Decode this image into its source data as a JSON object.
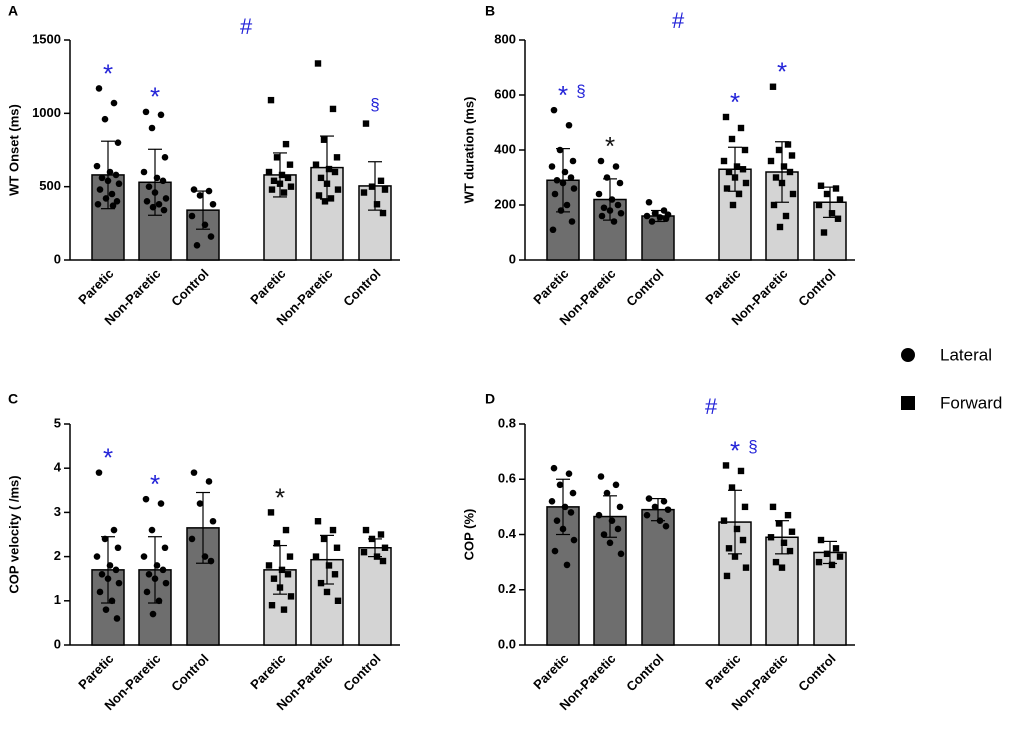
{
  "chart_data": [
    {
      "type": "bar",
      "label": "A",
      "ylabel": "WT Onset (ms)",
      "hash": "#",
      "hash_color": "#2323d8",
      "ylim": [
        0,
        1500
      ],
      "yticks": [
        0,
        500,
        1000,
        1500
      ],
      "categories": [
        "Paretic",
        "Non-Paretic",
        "Control"
      ],
      "series": [
        {
          "name": "Lateral",
          "marker": "circle",
          "color": "#6e6e6e",
          "values": [
            580,
            530,
            340
          ],
          "errors": [
            230,
            225,
            130
          ],
          "points": [
            [
              1170,
              1070,
              960,
              800,
              640,
              600,
              580,
              560,
              540,
              520,
              480,
              450,
              420,
              400,
              380,
              370
            ],
            [
              1010,
              990,
              900,
              700,
              600,
              560,
              540,
              500,
              460,
              420,
              400,
              380,
              360,
              340
            ],
            [
              480,
              470,
              440,
              380,
              300,
              240,
              160,
              100
            ]
          ]
        },
        {
          "name": "Forward",
          "marker": "square",
          "color": "#d4d4d4",
          "values": [
            580,
            630,
            505
          ],
          "errors": [
            150,
            215,
            165
          ],
          "points": [
            [
              1090,
              790,
              700,
              650,
              600,
              580,
              560,
              540,
              520,
              500,
              480,
              460
            ],
            [
              1340,
              1030,
              820,
              700,
              650,
              620,
              600,
              560,
              520,
              480,
              440,
              420,
              400
            ],
            [
              930,
              540,
              500,
              480,
              460,
              380,
              320
            ]
          ]
        }
      ],
      "annotations": [
        {
          "text": "*",
          "series": 0,
          "index": 0,
          "color": "#2323d8"
        },
        {
          "text": "*",
          "series": 0,
          "index": 1,
          "color": "#2323d8"
        },
        {
          "text": "§",
          "series": 1,
          "index": 2,
          "color": "#2323d8"
        }
      ]
    },
    {
      "type": "bar",
      "label": "B",
      "ylabel": "WT duration (ms)",
      "hash": "#",
      "hash_color": "#2323d8",
      "ylim": [
        0,
        800
      ],
      "yticks": [
        0,
        200,
        400,
        600,
        800
      ],
      "categories": [
        "Paretic",
        "Non-Paretic",
        "Control"
      ],
      "series": [
        {
          "name": "Lateral",
          "marker": "circle",
          "color": "#6e6e6e",
          "values": [
            290,
            220,
            160
          ],
          "errors": [
            115,
            75,
            20
          ],
          "points": [
            [
              545,
              490,
              400,
              360,
              340,
              320,
              300,
              290,
              280,
              260,
              240,
              200,
              180,
              140,
              110
            ],
            [
              360,
              340,
              300,
              280,
              240,
              220,
              200,
              190,
              180,
              170,
              160,
              140
            ],
            [
              210,
              180,
              170,
              165,
              160,
              155,
              150,
              140
            ]
          ]
        },
        {
          "name": "Forward",
          "marker": "square",
          "color": "#d4d4d4",
          "values": [
            330,
            320,
            210
          ],
          "errors": [
            80,
            110,
            55
          ],
          "points": [
            [
              520,
              480,
              440,
              400,
              360,
              340,
              330,
              320,
              300,
              280,
              260,
              240,
              200
            ],
            [
              630,
              420,
              400,
              380,
              360,
              340,
              320,
              300,
              280,
              240,
              200,
              160,
              120
            ],
            [
              270,
              260,
              240,
              220,
              200,
              170,
              150,
              100
            ]
          ]
        }
      ],
      "annotations": [
        {
          "text": "*",
          "series": 0,
          "index": 0,
          "color": "#2323d8"
        },
        {
          "text": "§",
          "series": 0,
          "index": 0,
          "color": "#2323d8"
        },
        {
          "text": "*",
          "series": 0,
          "index": 1,
          "color": "#111111"
        },
        {
          "text": "*",
          "series": 1,
          "index": 0,
          "color": "#2323d8"
        },
        {
          "text": "*",
          "series": 1,
          "index": 1,
          "color": "#2323d8"
        }
      ]
    },
    {
      "type": "bar",
      "label": "C",
      "ylabel": "COP velocity ( /ms)",
      "ylim": [
        0,
        5
      ],
      "yticks": [
        0,
        1,
        2,
        3,
        4,
        5
      ],
      "categories": [
        "Paretic",
        "Non-Paretic",
        "Control"
      ],
      "series": [
        {
          "name": "Lateral",
          "marker": "circle",
          "color": "#6e6e6e",
          "values": [
            1.7,
            1.7,
            2.65
          ],
          "errors": [
            0.75,
            0.75,
            0.8
          ],
          "points": [
            [
              3.9,
              2.6,
              2.4,
              2.2,
              2.0,
              1.8,
              1.7,
              1.6,
              1.5,
              1.4,
              1.2,
              1.0,
              0.8,
              0.6
            ],
            [
              3.3,
              3.2,
              2.6,
              2.2,
              2.0,
              1.8,
              1.7,
              1.6,
              1.5,
              1.4,
              1.2,
              1.0,
              0.7
            ],
            [
              3.9,
              3.7,
              3.2,
              2.8,
              2.4,
              2.0,
              1.9
            ]
          ]
        },
        {
          "name": "Forward",
          "marker": "square",
          "color": "#d4d4d4",
          "values": [
            1.7,
            1.93,
            2.2
          ],
          "errors": [
            0.55,
            0.55,
            0.2
          ],
          "points": [
            [
              3.0,
              2.6,
              2.3,
              2.0,
              1.8,
              1.7,
              1.6,
              1.5,
              1.3,
              1.1,
              0.9,
              0.8
            ],
            [
              2.8,
              2.6,
              2.4,
              2.2,
              2.0,
              1.8,
              1.6,
              1.4,
              1.2,
              1.0
            ],
            [
              2.6,
              2.5,
              2.4,
              2.2,
              2.1,
              2.0,
              1.9
            ]
          ]
        }
      ],
      "annotations": [
        {
          "text": "*",
          "series": 0,
          "index": 0,
          "color": "#2323d8"
        },
        {
          "text": "*",
          "series": 0,
          "index": 1,
          "color": "#2323d8"
        },
        {
          "text": "*",
          "series": 1,
          "index": 0,
          "color": "#111111"
        }
      ]
    },
    {
      "type": "bar",
      "label": "D",
      "ylabel": "COP (%)",
      "hash": "#",
      "hash_color": "#2323d8",
      "ylim": [
        0,
        0.8
      ],
      "yticks": [
        {
          "value": 0,
          "label": "0.0"
        },
        0.2,
        0.4,
        0.6,
        0.8
      ],
      "categories": [
        "Paretic",
        "Non-Paretic",
        "Control"
      ],
      "series": [
        {
          "name": "Lateral",
          "marker": "circle",
          "color": "#6e6e6e",
          "values": [
            0.5,
            0.465,
            0.49
          ],
          "errors": [
            0.1,
            0.075,
            0.04
          ],
          "points": [
            [
              0.64,
              0.62,
              0.58,
              0.55,
              0.52,
              0.5,
              0.48,
              0.45,
              0.42,
              0.38,
              0.34,
              0.29
            ],
            [
              0.61,
              0.58,
              0.55,
              0.5,
              0.47,
              0.45,
              0.42,
              0.4,
              0.37,
              0.33
            ],
            [
              0.53,
              0.52,
              0.5,
              0.49,
              0.47,
              0.45,
              0.43
            ]
          ]
        },
        {
          "name": "Forward",
          "marker": "square",
          "color": "#d4d4d4",
          "values": [
            0.445,
            0.39,
            0.335
          ],
          "errors": [
            0.115,
            0.06,
            0.04
          ],
          "points": [
            [
              0.65,
              0.63,
              0.57,
              0.5,
              0.45,
              0.42,
              0.38,
              0.35,
              0.32,
              0.28,
              0.25
            ],
            [
              0.5,
              0.47,
              0.44,
              0.41,
              0.39,
              0.37,
              0.34,
              0.3,
              0.28
            ],
            [
              0.38,
              0.35,
              0.33,
              0.32,
              0.3,
              0.29
            ]
          ]
        }
      ],
      "annotations": [
        {
          "text": "*",
          "series": 1,
          "index": 0,
          "color": "#2323d8"
        },
        {
          "text": "§",
          "series": 1,
          "index": 0,
          "color": "#2323d8"
        }
      ]
    }
  ]
}
